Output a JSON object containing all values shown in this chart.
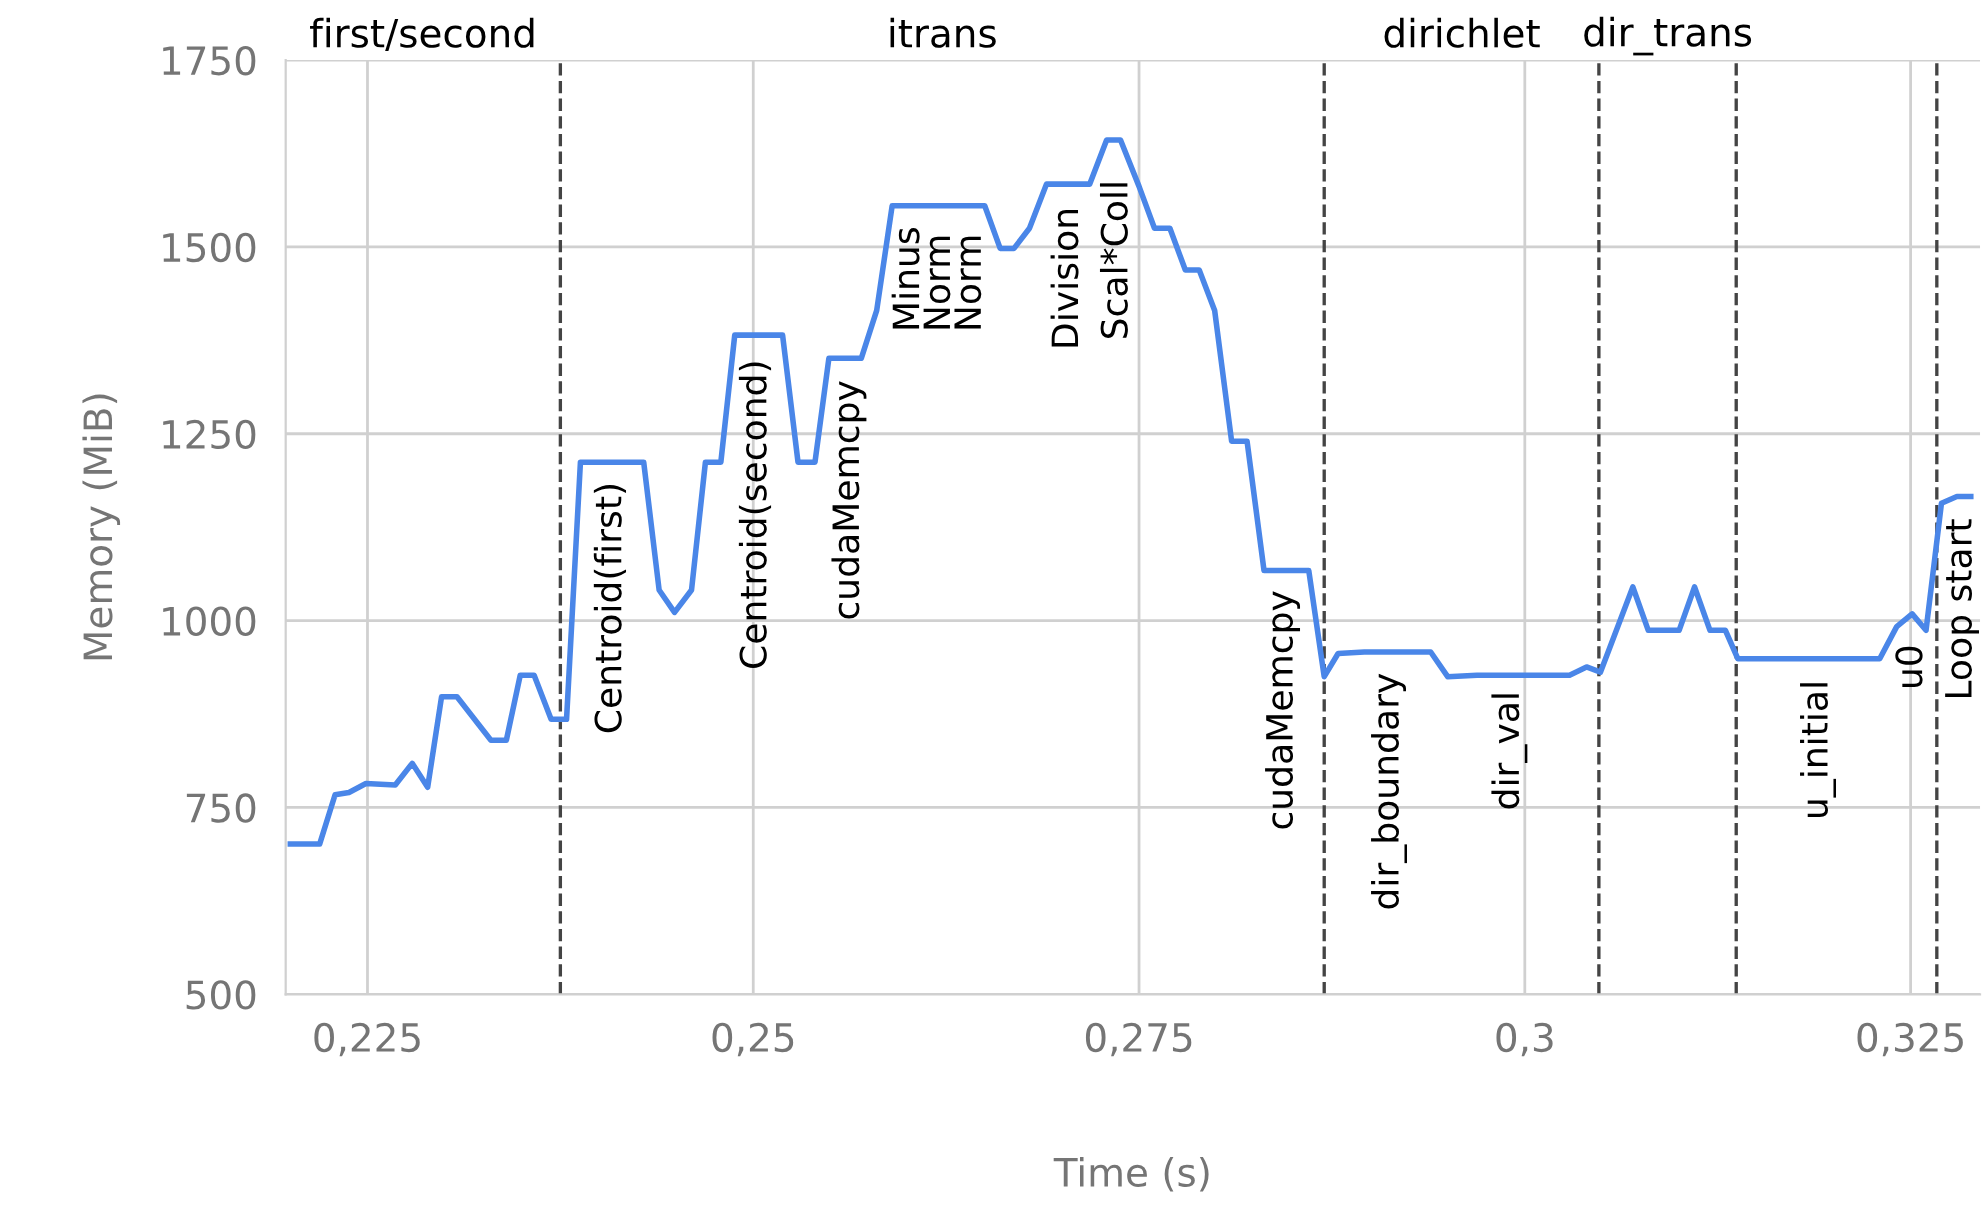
{
  "chart_data": {
    "type": "line",
    "xlabel": "Time (s)",
    "ylabel": "Memory (MiB)",
    "x": [
      0.22,
      0.2219,
      0.2229,
      0.2238,
      0.2249,
      0.2268,
      0.2279,
      0.2289,
      0.2298,
      0.2308,
      0.233,
      0.234,
      0.2349,
      0.2358,
      0.2369,
      0.2379,
      0.2388,
      0.2429,
      0.2439,
      0.2449,
      0.246,
      0.2469,
      0.2479,
      0.2488,
      0.2519,
      0.2529,
      0.254,
      0.2549,
      0.257,
      0.258,
      0.259,
      0.265,
      0.266,
      0.2669,
      0.2679,
      0.269,
      0.2718,
      0.2729,
      0.2738,
      0.275,
      0.276,
      0.277,
      0.278,
      0.2789,
      0.2799,
      0.281,
      0.282,
      0.2831,
      0.286,
      0.287,
      0.2879,
      0.2896,
      0.2939,
      0.295,
      0.2969,
      0.3029,
      0.304,
      0.3049,
      0.307,
      0.308,
      0.31,
      0.311,
      0.312,
      0.313,
      0.3138,
      0.323,
      0.3241,
      0.3251,
      0.326,
      0.327,
      0.328,
      0.3289
    ],
    "series": [
      {
        "color": "#4a86e8",
        "values": [
          701,
          701,
          767,
          770,
          782,
          780,
          809,
          777,
          898,
          898,
          840,
          840,
          927,
          927,
          868,
          868,
          1212,
          1212,
          1041,
          1011,
          1041,
          1212,
          1212,
          1382,
          1382,
          1212,
          1212,
          1351,
          1351,
          1415,
          1555,
          1555,
          1498,
          1498,
          1525,
          1584,
          1584,
          1643,
          1643,
          1581,
          1525,
          1525,
          1469,
          1469,
          1415,
          1240,
          1240,
          1067,
          1067,
          925,
          956,
          958,
          958,
          925,
          927,
          927,
          938,
          931,
          1045,
          987,
          987,
          1045,
          987,
          987,
          949,
          949,
          992,
          1009,
          987,
          1157,
          1166,
          1166
        ]
      }
    ],
    "xlim": [
      0.2197,
      0.3295
    ],
    "ylim": [
      500,
      1750
    ],
    "xticks": [
      {
        "value": 0.225,
        "label": "0,225"
      },
      {
        "value": 0.25,
        "label": "0,25"
      },
      {
        "value": 0.275,
        "label": "0,275"
      },
      {
        "value": 0.3,
        "label": "0,3"
      },
      {
        "value": 0.325,
        "label": "0,325"
      }
    ],
    "yticks": [
      500,
      750,
      1000,
      1250,
      1500,
      1750
    ],
    "grid": true,
    "marker": "none",
    "line_style": "solid",
    "ref_lines": [
      {
        "axis": "x",
        "value": 0.2375,
        "color": "#444444",
        "line_style": "dashed"
      },
      {
        "axis": "x",
        "value": 0.287,
        "color": "#444444",
        "line_style": "dashed"
      },
      {
        "axis": "x",
        "value": 0.3048,
        "color": "#444444",
        "line_style": "dashed"
      },
      {
        "axis": "x",
        "value": 0.3137,
        "color": "#444444",
        "line_style": "dashed"
      },
      {
        "axis": "x",
        "value": 0.3267,
        "color": "#444444",
        "line_style": "dashed"
      }
    ],
    "annotations": [
      "first/second",
      "itrans",
      "dirichlet",
      "dir_trans",
      "Centroid(first)",
      "Centroid(second)",
      "cudaMemcpy",
      "Minus",
      "Norm",
      "Norm",
      "Division",
      "Scal*Coll",
      "cudaMemcpy",
      "dir_boundary",
      "dir_val",
      "u_initial",
      "u0",
      "Loop start"
    ]
  }
}
